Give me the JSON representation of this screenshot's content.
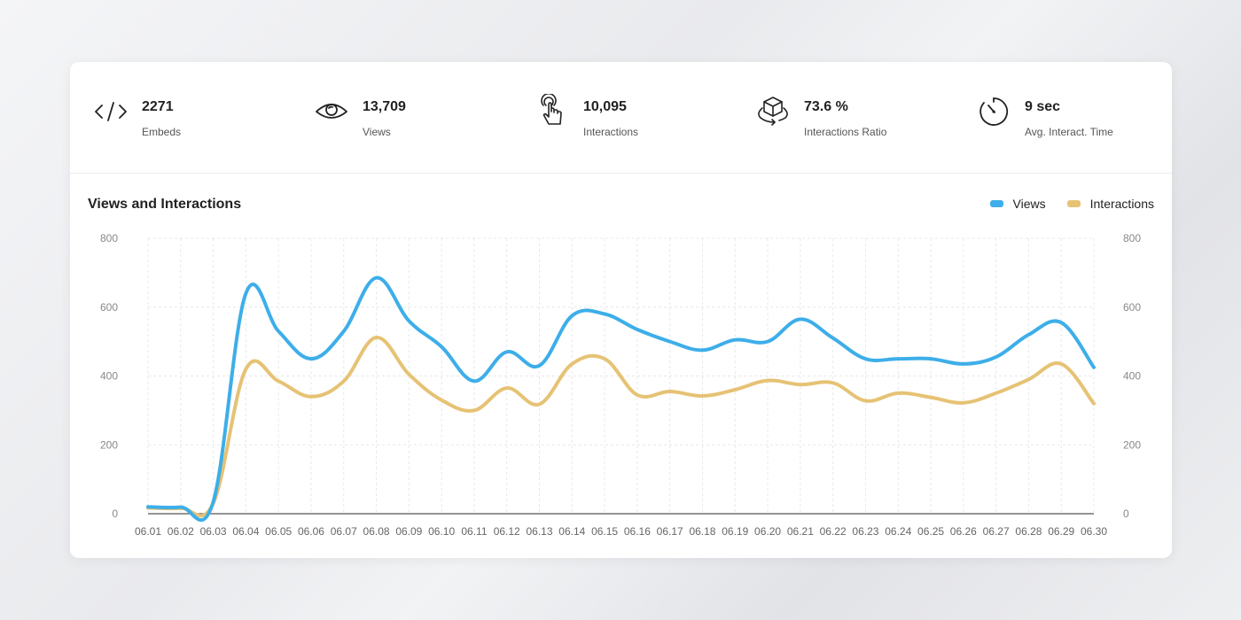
{
  "stats": [
    {
      "icon": "code-icon",
      "value": "2271",
      "label": "Embeds"
    },
    {
      "icon": "eye-icon",
      "value": "13,709",
      "label": "Views"
    },
    {
      "icon": "pointer-hand-icon",
      "value": "10,095",
      "label": "Interactions"
    },
    {
      "icon": "cube-rotate-icon",
      "value": "73.6 %",
      "label": "Interactions Ratio"
    },
    {
      "icon": "timer-icon",
      "value": "9 sec",
      "label": "Avg. Interact. Time"
    }
  ],
  "chart_data": {
    "type": "line",
    "title": "Views and Interactions",
    "categories": [
      "06.01",
      "06.02",
      "06.03",
      "06.04",
      "06.05",
      "06.06",
      "06.07",
      "06.08",
      "06.09",
      "06.10",
      "06.11",
      "06.12",
      "06.13",
      "06.14",
      "06.15",
      "06.16",
      "06.17",
      "06.18",
      "06.19",
      "06.20",
      "06.21",
      "06.22",
      "06.23",
      "06.24",
      "06.25",
      "06.26",
      "06.27",
      "06.28",
      "06.29",
      "06.30"
    ],
    "series": [
      {
        "name": "Views",
        "color": "#3daee9",
        "values": [
          20,
          19,
          35,
          640,
          530,
          450,
          530,
          685,
          560,
          485,
          385,
          470,
          430,
          575,
          580,
          535,
          500,
          475,
          505,
          500,
          565,
          510,
          450,
          450,
          450,
          435,
          455,
          520,
          555,
          425
        ]
      },
      {
        "name": "Interactions",
        "color": "#e6c274",
        "values": [
          17,
          16,
          30,
          420,
          385,
          340,
          385,
          512,
          405,
          330,
          300,
          365,
          318,
          435,
          450,
          345,
          355,
          342,
          360,
          387,
          375,
          380,
          328,
          350,
          338,
          322,
          350,
          390,
          435,
          320
        ]
      }
    ],
    "yticks": [
      0,
      200,
      400,
      600,
      800
    ],
    "ylim": [
      0,
      800
    ],
    "legend": "top-right",
    "grid": true
  }
}
